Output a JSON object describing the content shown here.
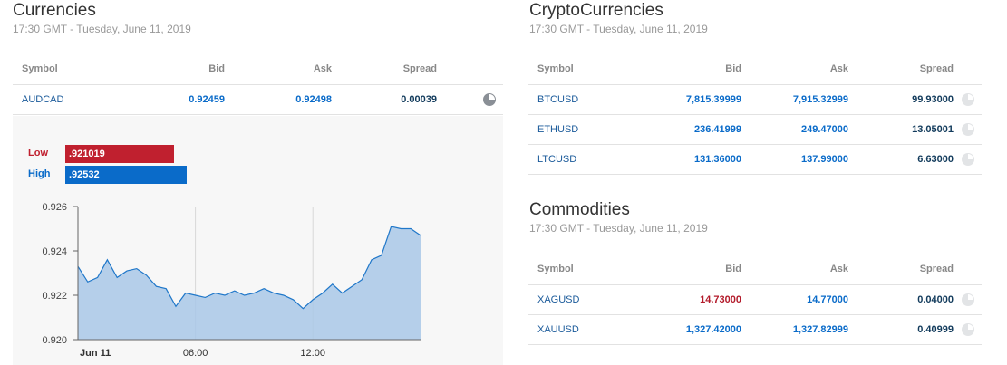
{
  "currencies": {
    "title": "Currencies",
    "timestamp": "17:30 GMT - Tuesday, June 11, 2019",
    "headers": {
      "symbol": "Symbol",
      "bid": "Bid",
      "ask": "Ask",
      "spread": "Spread"
    },
    "rows": [
      {
        "symbol": "AUDCAD",
        "bid": "0.92459",
        "ask": "0.92498",
        "spread": "0.00039",
        "icon": "pie-chart-icon"
      }
    ]
  },
  "range": {
    "low_label": "Low",
    "low_value": ".921019",
    "high_label": "High",
    "high_value": ".92532",
    "colors": {
      "low": "#c0202f",
      "high": "#0a6bc9"
    }
  },
  "chart_data": {
    "type": "area",
    "x_ticks": [
      "Jun 11",
      "06:00",
      "12:00"
    ],
    "y_ticks": [
      "0.926",
      "0.924",
      "0.922",
      "0.920"
    ],
    "ylim": [
      0.92,
      0.926
    ],
    "grid": true,
    "color": "#1f77c9",
    "fill": "#a9c8e8",
    "x_hours": [
      0,
      0.5,
      1,
      1.5,
      2,
      2.5,
      3,
      3.5,
      4,
      4.5,
      5,
      5.5,
      6,
      6.5,
      7,
      7.5,
      8,
      8.5,
      9,
      9.5,
      10,
      10.5,
      11,
      11.5,
      12,
      12.5,
      13,
      13.5,
      14,
      14.5,
      15,
      15.5,
      16,
      16.5,
      17,
      17.5
    ],
    "values": [
      0.9233,
      0.9226,
      0.9228,
      0.9236,
      0.9228,
      0.9231,
      0.9232,
      0.9229,
      0.9224,
      0.9223,
      0.9215,
      0.9221,
      0.922,
      0.9219,
      0.9221,
      0.922,
      0.9222,
      0.922,
      0.9221,
      0.9223,
      0.9221,
      0.922,
      0.9218,
      0.9214,
      0.9218,
      0.9221,
      0.9225,
      0.9221,
      0.9224,
      0.9227,
      0.9236,
      0.9238,
      0.9251,
      0.925,
      0.925,
      0.9247
    ]
  },
  "crypto": {
    "title": "CryptoCurrencies",
    "timestamp": "17:30 GMT - Tuesday, June 11, 2019",
    "headers": {
      "symbol": "Symbol",
      "bid": "Bid",
      "ask": "Ask",
      "spread": "Spread"
    },
    "rows": [
      {
        "symbol": "BTCUSD",
        "bid": "7,815.39999",
        "ask": "7,915.32999",
        "spread": "99.93000",
        "icon": "pie-chart-icon"
      },
      {
        "symbol": "ETHUSD",
        "bid": "236.41999",
        "ask": "249.47000",
        "spread": "13.05001",
        "icon": "pie-chart-icon"
      },
      {
        "symbol": "LTCUSD",
        "bid": "131.36000",
        "ask": "137.99000",
        "spread": "6.63000",
        "icon": "pie-chart-icon"
      }
    ]
  },
  "commodities": {
    "title": "Commodities",
    "timestamp": "17:30 GMT - Tuesday, June 11, 2019",
    "headers": {
      "symbol": "Symbol",
      "bid": "Bid",
      "ask": "Ask",
      "spread": "Spread"
    },
    "rows": [
      {
        "symbol": "XAGUSD",
        "bid": "14.73000",
        "ask": "14.77000",
        "spread": "0.04000",
        "icon": "pie-chart-icon",
        "bid_direction": "down"
      },
      {
        "symbol": "XAUUSD",
        "bid": "1,327.42000",
        "ask": "1,327.82999",
        "spread": "0.40999",
        "icon": "pie-chart-icon"
      }
    ]
  }
}
